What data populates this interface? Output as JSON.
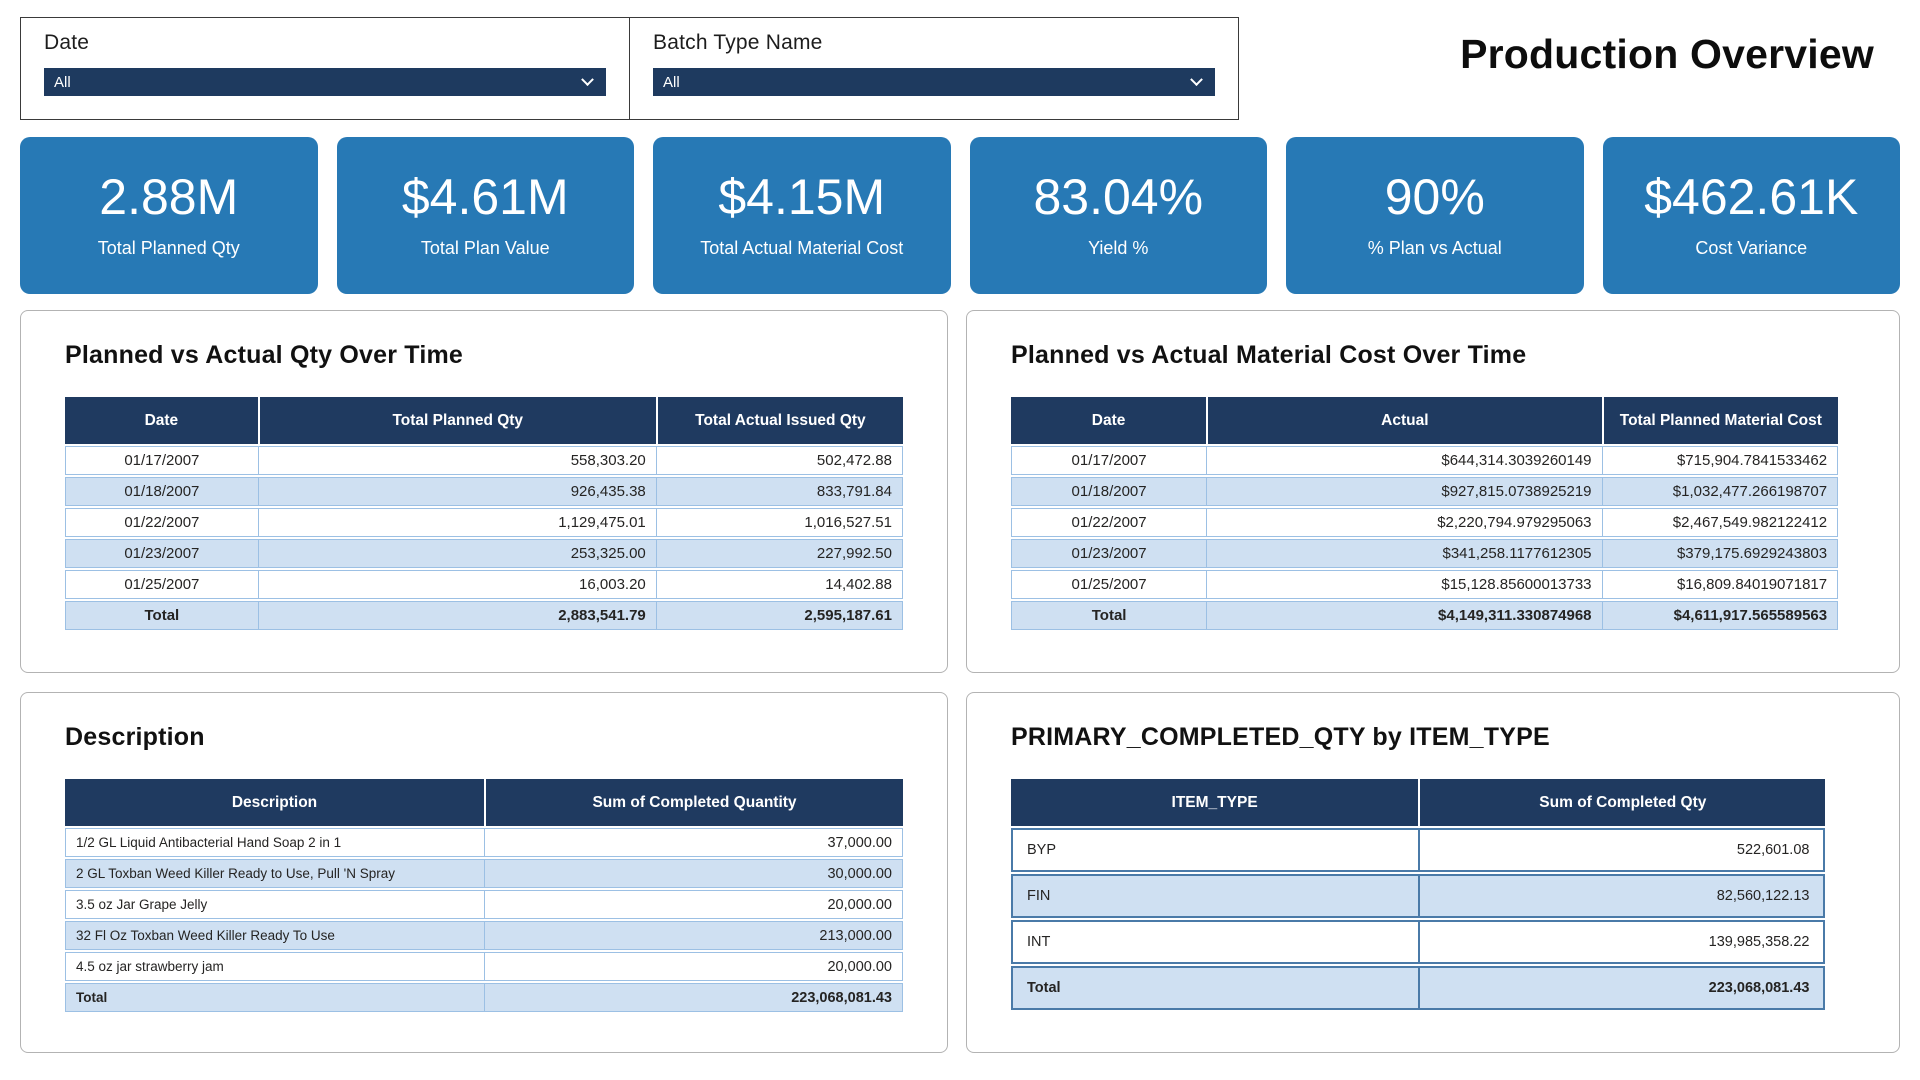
{
  "title": "Production Overview",
  "filters": [
    {
      "label": "Date",
      "value": "All"
    },
    {
      "label": "Batch Type Name",
      "value": "All"
    }
  ],
  "kpis": [
    {
      "value": "2.88M",
      "label": "Total Planned Qty"
    },
    {
      "value": "$4.61M",
      "label": "Total Plan Value"
    },
    {
      "value": "$4.15M",
      "label": "Total Actual Material Cost"
    },
    {
      "value": "83.04%",
      "label": "Yield %"
    },
    {
      "value": "90%",
      "label": "% Plan vs Actual"
    },
    {
      "value": "$462.61K",
      "label": "Cost Variance"
    }
  ],
  "qty_table": {
    "title": "Planned vs Actual Qty Over Time",
    "columns": [
      "Date",
      "Total Planned Qty",
      "Total Actual Issued Qty"
    ],
    "rows": [
      [
        "01/17/2007",
        "558,303.20",
        "502,472.88"
      ],
      [
        "01/18/2007",
        "926,435.38",
        "833,791.84"
      ],
      [
        "01/22/2007",
        "1,129,475.01",
        "1,016,527.51"
      ],
      [
        "01/23/2007",
        "253,325.00",
        "227,992.50"
      ],
      [
        "01/25/2007",
        "16,003.20",
        "14,402.88"
      ]
    ],
    "total": [
      "Total",
      "2,883,541.79",
      "2,595,187.61"
    ]
  },
  "cost_table": {
    "title": "Planned vs Actual Material Cost Over Time",
    "columns": [
      "Date",
      "Actual",
      "Total Planned Material Cost"
    ],
    "rows": [
      [
        "01/17/2007",
        "$644,314.3039260149",
        "$715,904.7841533462"
      ],
      [
        "01/18/2007",
        "$927,815.0738925219",
        "$1,032,477.266198707"
      ],
      [
        "01/22/2007",
        "$2,220,794.979295063",
        "$2,467,549.982122412"
      ],
      [
        "01/23/2007",
        "$341,258.1177612305",
        "$379,175.6929243803"
      ],
      [
        "01/25/2007",
        "$15,128.85600013733",
        "$16,809.84019071817"
      ]
    ],
    "total": [
      "Total",
      "$4,149,311.330874968",
      "$4,611,917.565589563"
    ]
  },
  "description_table": {
    "title": "Description",
    "columns": [
      "Description",
      "Sum of Completed Quantity"
    ],
    "rows": [
      [
        "1/2 GL Liquid Antibacterial Hand Soap 2 in 1",
        "37,000.00"
      ],
      [
        "2 GL Toxban Weed Killer Ready to Use, Pull 'N Spray",
        "30,000.00"
      ],
      [
        "3.5 oz Jar Grape Jelly",
        "20,000.00"
      ],
      [
        "32 Fl Oz Toxban Weed Killer Ready To Use",
        "213,000.00"
      ],
      [
        "4.5 oz jar strawberry jam",
        "20,000.00"
      ]
    ],
    "total": [
      "Total",
      "223,068,081.43"
    ]
  },
  "item_type_table": {
    "title": "PRIMARY_COMPLETED_QTY by ITEM_TYPE",
    "columns": [
      "ITEM_TYPE",
      "Sum of Completed Qty"
    ],
    "rows": [
      [
        "BYP",
        "522,601.08"
      ],
      [
        "FIN",
        "82,560,122.13"
      ],
      [
        "INT",
        "139,985,358.22"
      ]
    ],
    "total": [
      "Total",
      "223,068,081.43"
    ]
  },
  "colors": {
    "kpi_card": "#2779b5",
    "header_navy": "#1f3a60",
    "alt_row": "#cfe0f2",
    "table_border": "#9cc0e4",
    "item_table_border": "#4a7aa8"
  }
}
